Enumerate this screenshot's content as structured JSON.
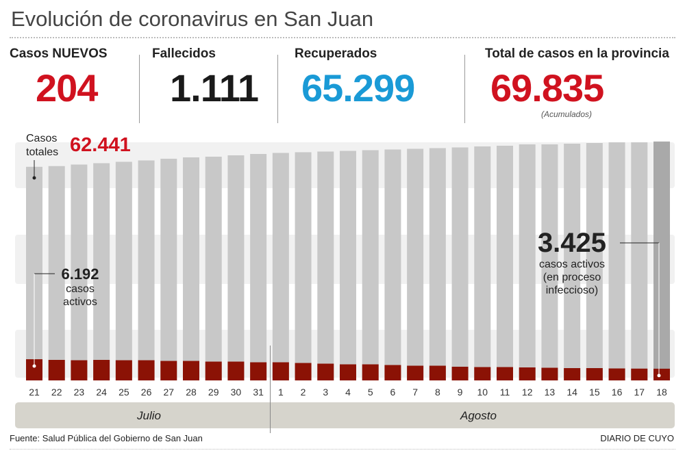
{
  "title": "Evolución de coronavirus en San Juan",
  "stats": [
    {
      "label": "Casos NUEVOS",
      "value": "204",
      "color": "#d0121f"
    },
    {
      "label": "Fallecidos",
      "value": "1.111",
      "color": "#1a1a1a"
    },
    {
      "label": "Recuperados",
      "value": "65.299",
      "color": "#1a9ad6"
    },
    {
      "label": "Total de casos en la provincia",
      "value": "69.835",
      "color": "#d0121f",
      "note": "(Acumulados)"
    }
  ],
  "annotations": {
    "totales_label": "Casos totales",
    "totales_line1": "Casos",
    "totales_line2": "totales",
    "totales_value": "62.441",
    "activos_start_value": "6.192",
    "activos_start_l1": "casos",
    "activos_start_l2": "activos",
    "activos_end_value": "3.425",
    "activos_end_l1": "casos activos",
    "activos_end_l2": "(en proceso",
    "activos_end_l3": "infeccioso)"
  },
  "chart_data": {
    "type": "bar",
    "categories": [
      "21",
      "22",
      "23",
      "24",
      "25",
      "26",
      "27",
      "28",
      "29",
      "30",
      "31",
      "1",
      "2",
      "3",
      "4",
      "5",
      "6",
      "7",
      "8",
      "9",
      "10",
      "11",
      "12",
      "13",
      "14",
      "15",
      "16",
      "17",
      "18"
    ],
    "months": [
      {
        "label": "Julio",
        "days": [
          "21",
          "22",
          "23",
          "24",
          "25",
          "26",
          "27",
          "28",
          "29",
          "30",
          "31"
        ]
      },
      {
        "label": "Agosto",
        "days": [
          "1",
          "2",
          "3",
          "4",
          "5",
          "6",
          "7",
          "8",
          "9",
          "10",
          "11",
          "12",
          "13",
          "14",
          "15",
          "16",
          "17",
          "18"
        ]
      }
    ],
    "series": [
      {
        "name": "Casos totales",
        "color": "#c8c8c8",
        "highlight_color": "#a9a9a9",
        "values": [
          62441,
          62650,
          63100,
          63500,
          63900,
          64300,
          64800,
          65200,
          65400,
          65800,
          66200,
          66500,
          66700,
          66900,
          67100,
          67300,
          67500,
          67700,
          67900,
          68100,
          68400,
          68600,
          69000,
          69000,
          69200,
          69400,
          69600,
          69600,
          69835
        ]
      },
      {
        "name": "casos activos",
        "color": "#8b1205",
        "values": [
          6192,
          6000,
          5900,
          6000,
          5900,
          5900,
          5700,
          5700,
          5500,
          5500,
          5300,
          5300,
          5100,
          4900,
          4700,
          4700,
          4500,
          4300,
          4300,
          4000,
          3900,
          3900,
          3800,
          3700,
          3600,
          3600,
          3500,
          3450,
          3425
        ]
      }
    ],
    "ylim": [
      0,
      72000
    ],
    "grid": false
  },
  "footer": {
    "source": "Fuente: Salud Pública del Gobierno de San Juan",
    "brand": "DIARIO DE CUYO"
  }
}
